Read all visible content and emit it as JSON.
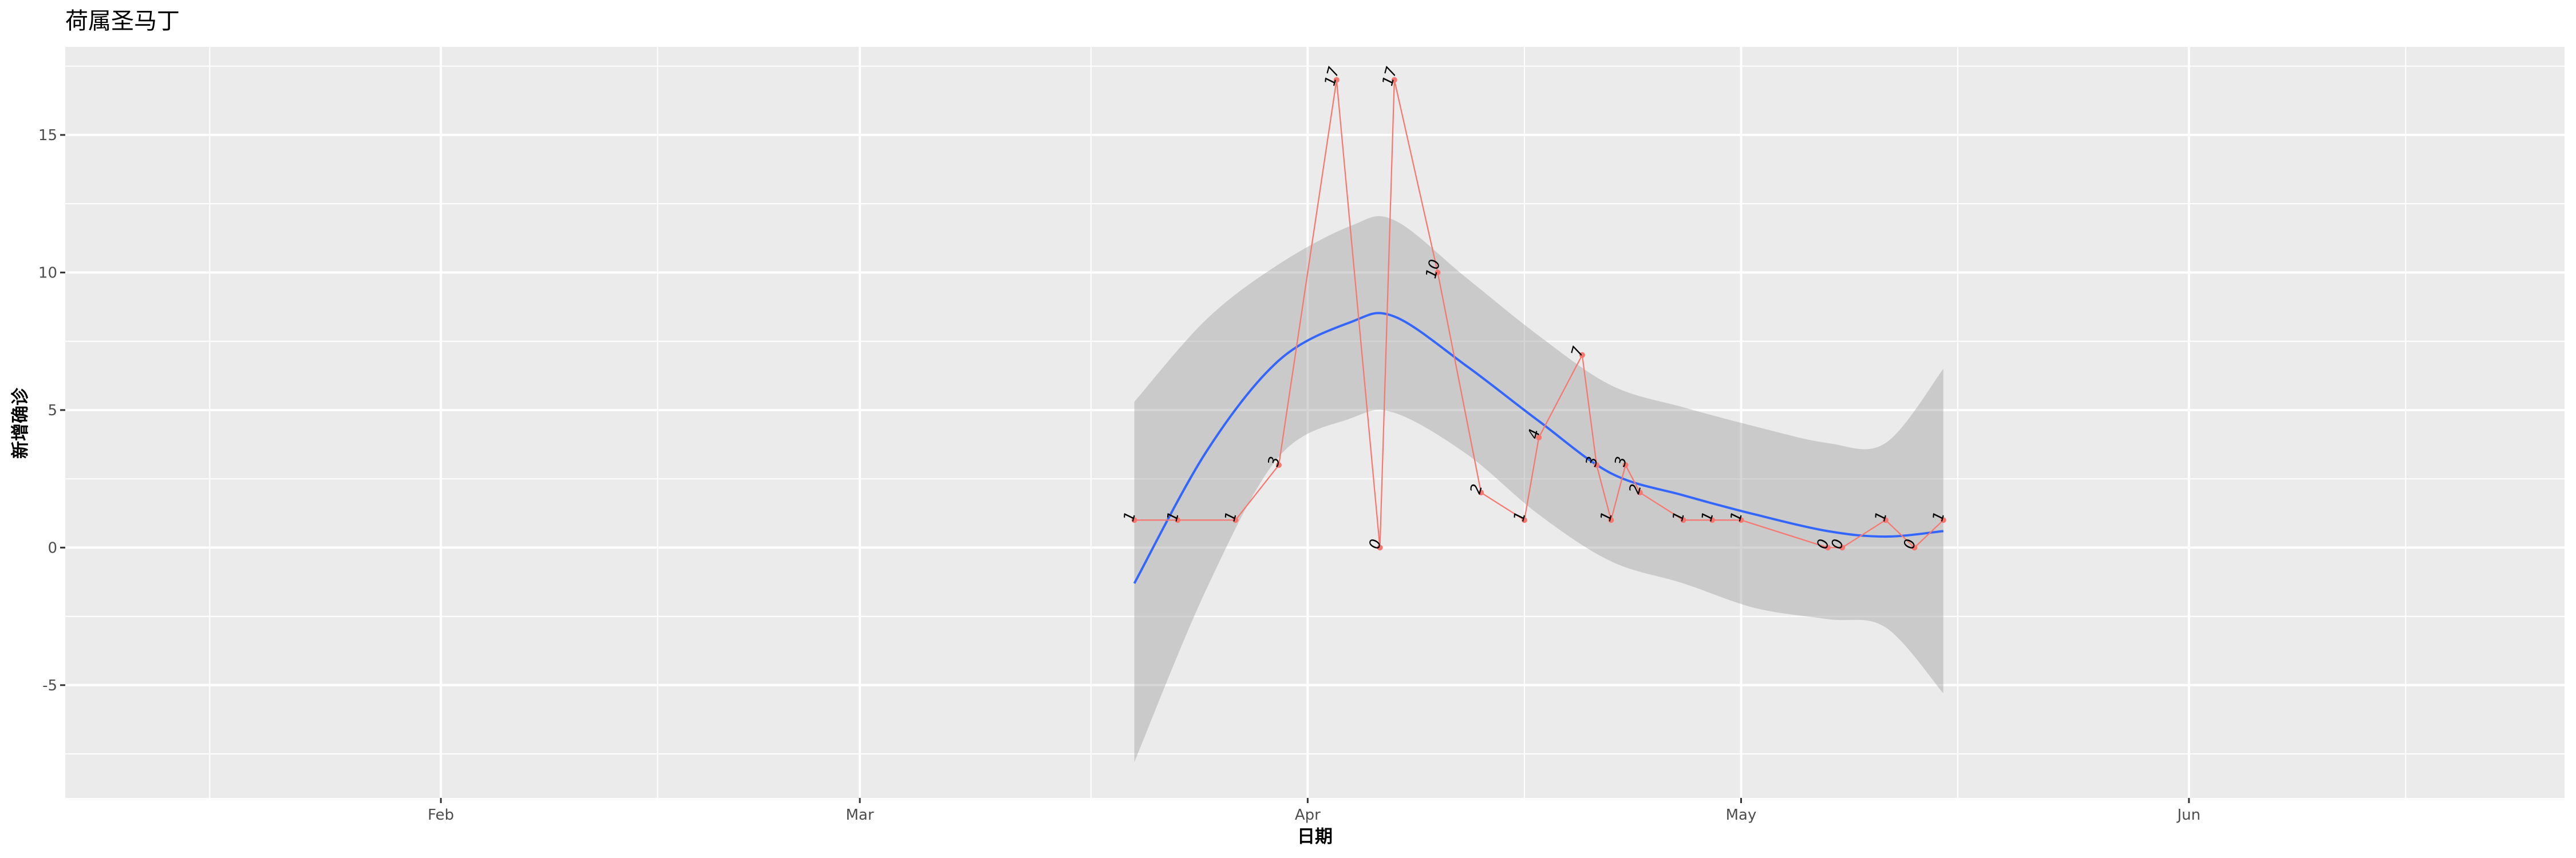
{
  "chart_data": {
    "type": "line",
    "title": "荷属圣马丁",
    "xlabel": "日期",
    "ylabel": "新增确诊",
    "x_range": [
      "2020-01-06",
      "2020-06-27"
    ],
    "ylim": [
      -9.1,
      18.2
    ],
    "grid": true,
    "background": "#EBEBEB",
    "x_ticks": [
      {
        "date": "2020-02-01",
        "label": "Feb"
      },
      {
        "date": "2020-03-01",
        "label": "Mar"
      },
      {
        "date": "2020-04-01",
        "label": "Apr"
      },
      {
        "date": "2020-05-01",
        "label": "May"
      },
      {
        "date": "2020-06-01",
        "label": "Jun"
      }
    ],
    "y_ticks": [
      -5,
      0,
      5,
      10,
      15
    ],
    "series": [
      {
        "color": "#F8766D",
        "x": [
          "2020-03-20",
          "2020-03-23",
          "2020-03-27",
          "2020-03-30",
          "2020-04-03",
          "2020-04-06",
          "2020-04-07",
          "2020-04-10",
          "2020-04-13",
          "2020-04-16",
          "2020-04-17",
          "2020-04-20",
          "2020-04-21",
          "2020-04-22",
          "2020-04-23",
          "2020-04-24",
          "2020-04-27",
          "2020-04-29",
          "2020-05-01",
          "2020-05-07",
          "2020-05-08",
          "2020-05-11",
          "2020-05-13",
          "2020-05-15"
        ],
        "y": [
          1,
          1,
          1,
          3,
          17,
          0,
          17,
          10,
          2,
          1,
          4,
          7,
          3,
          1,
          3,
          2,
          1,
          1,
          1,
          0,
          0,
          1,
          0,
          1
        ],
        "labels": [
          "1",
          "1",
          "1",
          "3",
          "17",
          "0",
          "17",
          "10",
          "2",
          "1",
          "4",
          "7",
          "3",
          "1",
          "3",
          "2",
          "1",
          "1",
          "1",
          "0",
          "0",
          "1",
          "0",
          "1"
        ]
      }
    ],
    "smooth": {
      "color": "#3366FF",
      "band_color": "#999999",
      "x": [
        "2020-03-20",
        "2020-03-25",
        "2020-03-30",
        "2020-04-04",
        "2020-04-07",
        "2020-04-12",
        "2020-04-17",
        "2020-04-22",
        "2020-04-27",
        "2020-05-02",
        "2020-05-07",
        "2020-05-11",
        "2020-05-15"
      ],
      "fit": [
        -1.3,
        3.5,
        6.8,
        8.2,
        8.4,
        6.6,
        4.6,
        2.7,
        1.9,
        1.2,
        0.6,
        0.4,
        0.6
      ],
      "lower": [
        -7.8,
        -1.5,
        3.3,
        4.7,
        4.9,
        3.4,
        1.2,
        -0.5,
        -1.3,
        -2.2,
        -2.6,
        -2.9,
        -5.3
      ],
      "upper": [
        5.3,
        8.3,
        10.3,
        11.7,
        11.9,
        9.8,
        7.7,
        5.9,
        5.1,
        4.4,
        3.8,
        3.8,
        6.5
      ]
    }
  }
}
